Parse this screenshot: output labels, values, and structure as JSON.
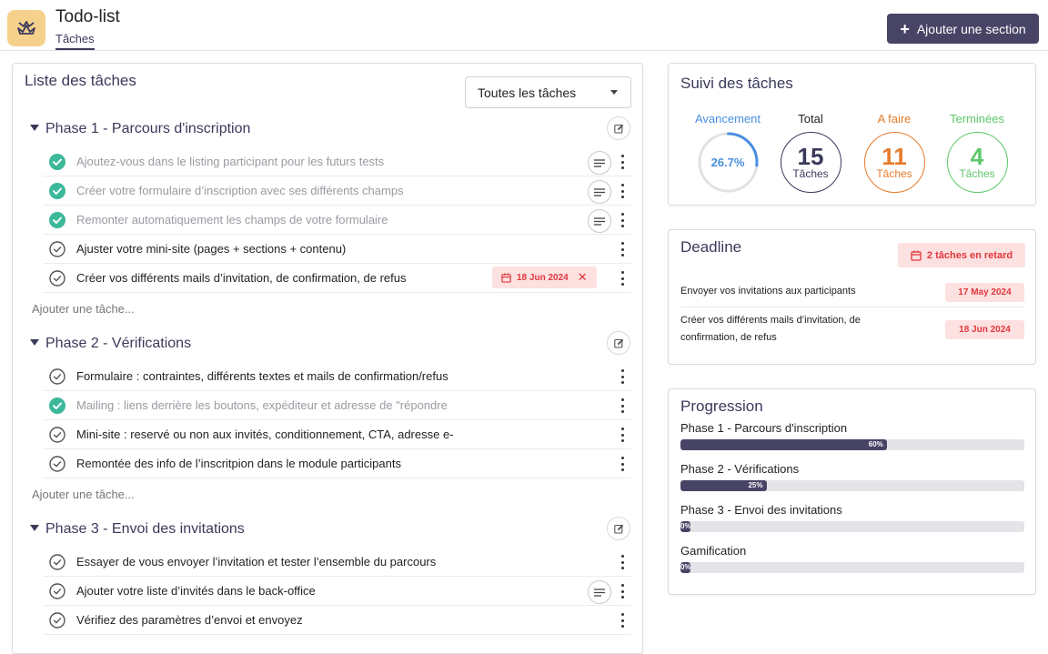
{
  "header": {
    "title": "Todo-list",
    "tab": "Tâches",
    "add_section_label": "Ajouter une section"
  },
  "colors": {
    "primary": "#474466",
    "accent_blue": "#4a8ee0",
    "accent_orange": "#e57b2c",
    "accent_green": "#5dc76a",
    "done_check": "#3cb89b",
    "late_red": "#e0383e",
    "logo_bg": "#f6d18c"
  },
  "list": {
    "title": "Liste des tâches",
    "filter_value": "Toutes les tâches",
    "add_task_label": "Ajouter une tâche...",
    "phases": [
      {
        "title": "Phase 1 - Parcours d'inscription",
        "tasks": [
          {
            "text": "Ajoutez-vous dans le listing participant pour les futurs tests",
            "done": true,
            "note": true
          },
          {
            "text": "Créer votre formulaire d’inscription avec ses différents champs",
            "done": true,
            "note": true
          },
          {
            "text": "Remonter automatiquement les champs de votre formulaire",
            "done": true,
            "note": true
          },
          {
            "text": "Ajuster votre mini-site (pages + sections + contenu)",
            "done": false,
            "note": false
          },
          {
            "text": "Créer vos différents mails d’invitation, de confirmation, de refus",
            "done": false,
            "note": false,
            "due": "18 Jun 2024"
          }
        ]
      },
      {
        "title": "Phase 2 - Vérifications",
        "tasks": [
          {
            "text": "Formulaire : contraintes, différents textes et mails de confirmation/refus",
            "done": false,
            "note": false
          },
          {
            "text": "Mailing : liens derrière les boutons, expéditeur et adresse de \"répondre",
            "done": true,
            "note": false
          },
          {
            "text": "Mini-site : reservé ou non aux invités, conditionnement, CTA, adresse e-",
            "done": false,
            "note": false
          },
          {
            "text": "Remontée des info de l’inscritpion dans le module participants",
            "done": false,
            "note": false
          }
        ]
      },
      {
        "title": "Phase 3 - Envoi des invitations",
        "tasks": [
          {
            "text": "Essayer de vous envoyer l’invitation et tester l’ensemble du parcours",
            "done": false,
            "note": false
          },
          {
            "text": "Ajouter votre liste d’invités dans le back-office",
            "done": false,
            "note": true
          },
          {
            "text": "Vérifiez des paramètres d’envoi et envoyez",
            "done": false,
            "note": false
          }
        ]
      }
    ]
  },
  "tracking": {
    "title": "Suivi des tâches",
    "progress_label": "Avancement",
    "progress_value": "26.7%",
    "progress_fraction": 0.267,
    "total_label": "Total",
    "total_value": "15",
    "todo_label": "A faire",
    "todo_value": "11",
    "done_label": "Terminées",
    "done_value": "4",
    "unit": "Tâches"
  },
  "deadline": {
    "title": "Deadline",
    "late_badge": "2 tâches en retard",
    "items": [
      {
        "text": "Envoyer vos invitations aux participants",
        "date": "17 May 2024"
      },
      {
        "text": "Créer vos différents mails d’invitation, de confirmation, de refus",
        "date": "18 Jun 2024"
      }
    ]
  },
  "progression": {
    "title": "Progression",
    "items": [
      {
        "label": "Phase 1 - Parcours d'inscription",
        "percent": 60,
        "text": "60%"
      },
      {
        "label": "Phase 2 - Vérifications",
        "percent": 25,
        "text": "25%"
      },
      {
        "label": "Phase 3 - Envoi des invitations",
        "percent": 0,
        "text": "0%"
      },
      {
        "label": "Gamification",
        "percent": 0,
        "text": "0%"
      }
    ]
  }
}
